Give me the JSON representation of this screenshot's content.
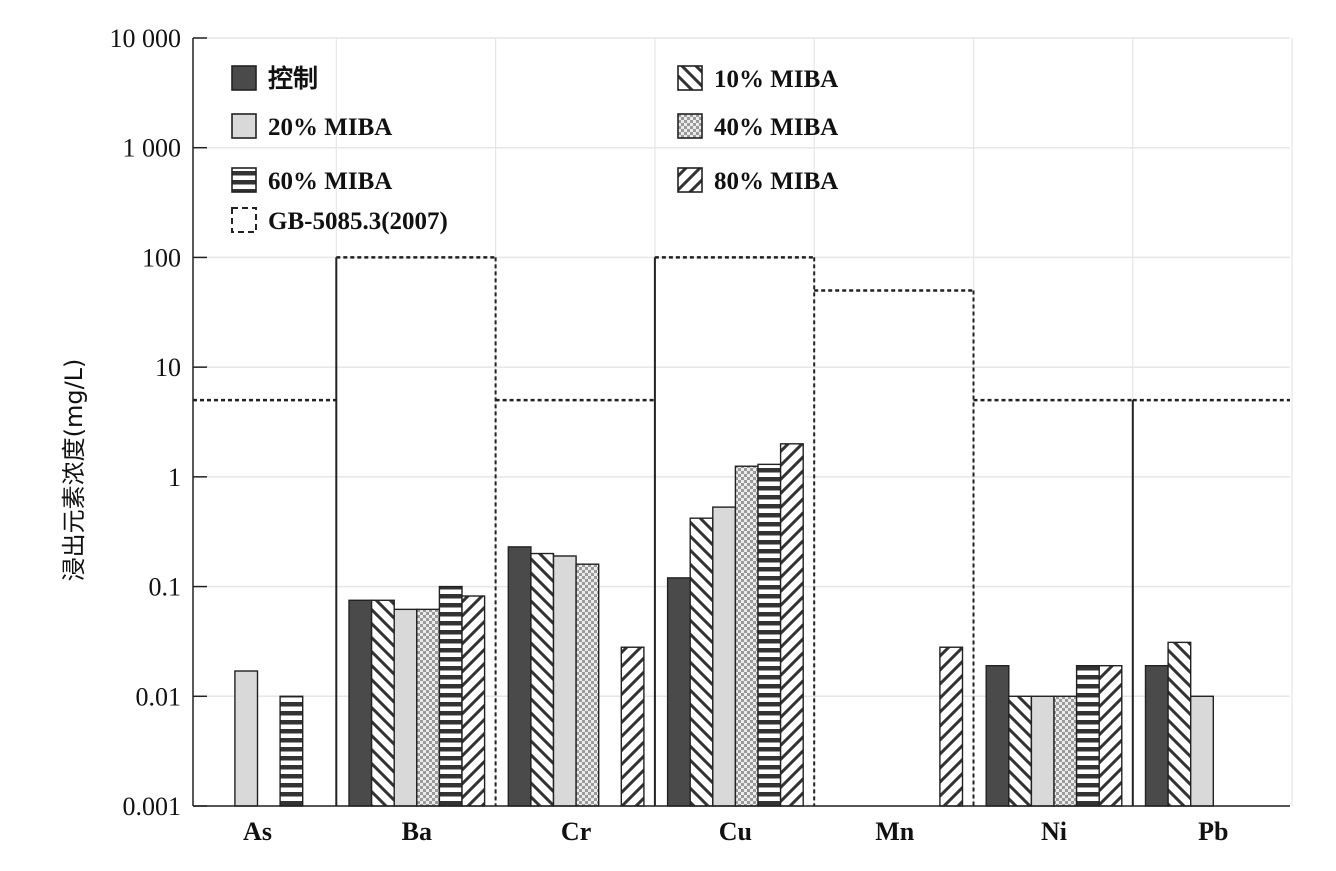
{
  "chart_data": {
    "type": "bar",
    "title": "",
    "ylabel": "浸出元素浓度(mg/L)",
    "xlabel": "",
    "y_scale": "log",
    "ylim": [
      0.001,
      10000
    ],
    "y_ticks": [
      {
        "value": 0.001,
        "label": "0.001"
      },
      {
        "value": 0.01,
        "label": "0.01"
      },
      {
        "value": 0.1,
        "label": "0.1"
      },
      {
        "value": 1,
        "label": "1"
      },
      {
        "value": 10,
        "label": "10"
      },
      {
        "value": 100,
        "label": "100"
      },
      {
        "value": 1000,
        "label": "1 000"
      },
      {
        "value": 10000,
        "label": "10 000"
      }
    ],
    "grid": true,
    "legend_position": "top-left",
    "categories": [
      "As",
      "Ba",
      "Cr",
      "Cu",
      "Mn",
      "Ni",
      "Pb"
    ],
    "series": [
      {
        "name": "控制",
        "pattern": "solid-dark",
        "values": [
          null,
          0.075,
          0.23,
          0.12,
          null,
          0.019,
          0.019
        ]
      },
      {
        "name": "10% MIBA",
        "pattern": "diag-back",
        "values": [
          null,
          0.075,
          0.2,
          0.42,
          null,
          0.01,
          0.031
        ]
      },
      {
        "name": "20% MIBA",
        "pattern": "solid-light",
        "values": [
          0.017,
          0.062,
          0.19,
          0.53,
          null,
          0.01,
          0.01
        ]
      },
      {
        "name": "40% MIBA",
        "pattern": "checker",
        "values": [
          null,
          0.062,
          0.16,
          1.25,
          null,
          0.01,
          null
        ]
      },
      {
        "name": "60% MIBA",
        "pattern": "horizontal",
        "values": [
          0.01,
          0.1,
          null,
          1.3,
          null,
          0.019,
          null
        ]
      },
      {
        "name": "80% MIBA",
        "pattern": "diag-forward",
        "values": [
          null,
          0.082,
          0.028,
          2.0,
          0.028,
          0.019,
          null
        ]
      }
    ],
    "limit_series": {
      "name": "GB-5085.3(2007)",
      "pattern": "dotted-outline",
      "values": [
        5,
        100,
        5,
        100,
        50,
        5,
        5
      ]
    },
    "colors": {
      "dark": "#4a4a4a",
      "light": "#d9d9d9",
      "grid": "#e6e6e6",
      "line": "#222222"
    }
  }
}
